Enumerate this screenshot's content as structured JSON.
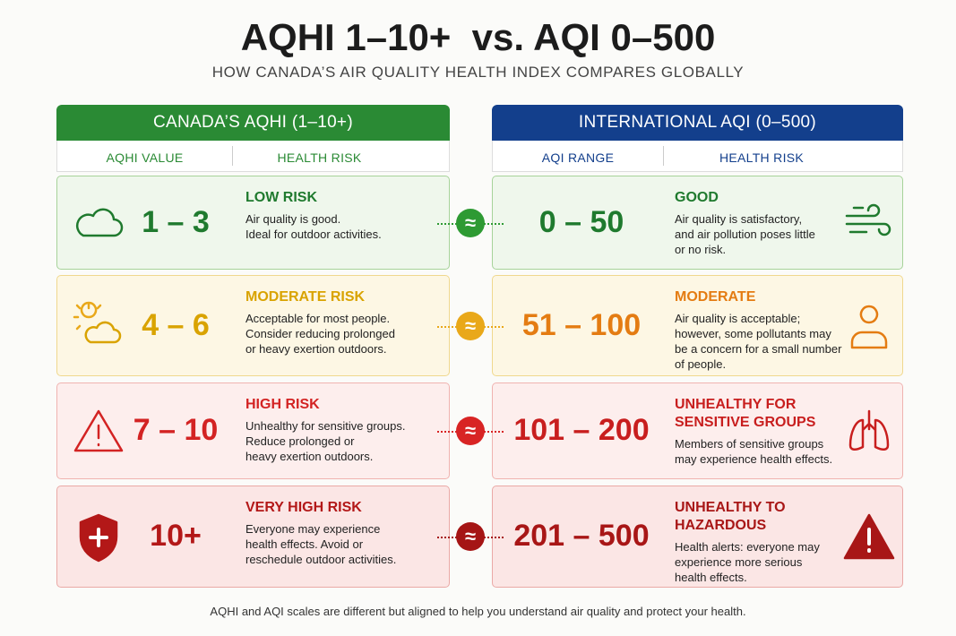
{
  "header": {
    "title": "AQHI 1–10+  vs. AQI 0–500",
    "subtitle": "HOW CANADA’S AIR QUALITY HEALTH INDEX COMPARES GLOBALLY"
  },
  "left": {
    "title": "CANADA’S AQHI (1–10+)",
    "columns": [
      "AQHI VALUE",
      "HEALTH RISK"
    ],
    "rows": [
      {
        "value": "1 – 3",
        "risk": [
          "LOW RISK"
        ],
        "description": [
          "Air quality is good.",
          "Ideal for outdoor activities."
        ]
      },
      {
        "value": "4 – 6",
        "risk": [
          "MODERATE RISK"
        ],
        "description": [
          "Acceptable for most people.",
          "Consider reducing prolonged",
          "or heavy exertion outdoors."
        ]
      },
      {
        "value": "7 – 10",
        "risk": [
          "HIGH RISK"
        ],
        "description": [
          "Unhealthy for sensitive groups.",
          "Reduce prolonged or",
          "heavy exertion outdoors."
        ]
      },
      {
        "value": "10+",
        "risk": [
          "VERY HIGH RISK"
        ],
        "description": [
          "Everyone may experience",
          "health effects. Avoid or",
          "reschedule outdoor activities."
        ]
      }
    ]
  },
  "right": {
    "title": "INTERNATIONAL AQI (0–500)",
    "columns": [
      "AQI RANGE",
      "HEALTH RISK"
    ],
    "rows": [
      {
        "value": "0 – 50",
        "risk": [
          "GOOD"
        ],
        "description": [
          "Air quality is satisfactory,",
          "and air pollution poses little",
          "or no risk."
        ]
      },
      {
        "value": "51 – 100",
        "risk": [
          "MODERATE"
        ],
        "description": [
          "Air quality is acceptable;",
          "however, some pollutants may",
          "be a concern for a small number",
          "of people."
        ]
      },
      {
        "value": "101 – 200",
        "risk": [
          "UNHEALTHY FOR",
          "SENSITIVE GROUPS"
        ],
        "description": [
          "Members of sensitive groups",
          "may experience health effects."
        ]
      },
      {
        "value": "201 – 500",
        "risk": [
          "UNHEALTHY TO",
          "HAZARDOUS"
        ],
        "description": [
          "Health alerts: everyone may",
          "experience more serious",
          "health effects."
        ]
      }
    ]
  },
  "connectors": [
    "≈",
    "≈",
    "≈",
    "≈"
  ],
  "footer": "AQHI and AQI scales are different but aligned to help you understand air quality and protect your health."
}
